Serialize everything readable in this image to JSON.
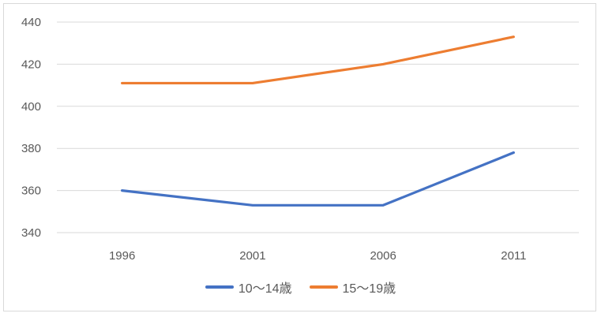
{
  "chart_data": {
    "type": "line",
    "title": "",
    "xlabel": "",
    "ylabel": "",
    "categories": [
      "1996",
      "2001",
      "2006",
      "2011"
    ],
    "ylim": [
      340,
      440
    ],
    "yticks": [
      340,
      360,
      380,
      400,
      420,
      440
    ],
    "grid": true,
    "legend_position": "bottom",
    "series": [
      {
        "name": "10～14歳",
        "color": "#4472C4",
        "values": [
          360,
          353,
          353,
          378
        ]
      },
      {
        "name": "15～19歳",
        "color": "#ED7D31",
        "values": [
          411,
          411,
          420,
          433
        ]
      }
    ]
  }
}
